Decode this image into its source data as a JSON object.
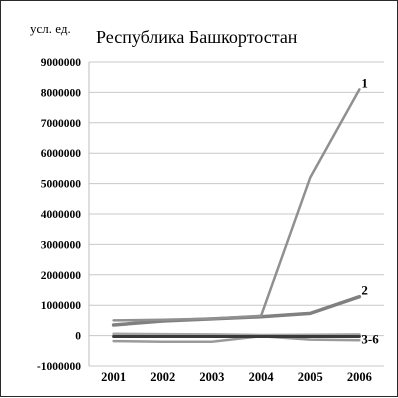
{
  "chart_data": {
    "type": "line",
    "title": "Республика Башкортостан",
    "ylabel": "усл. ед.",
    "xlabel": "",
    "x": [
      "2001",
      "2002",
      "2003",
      "2004",
      "2005",
      "2006"
    ],
    "ylim": [
      -1000000,
      9000000
    ],
    "yticks": [
      -1000000,
      0,
      1000000,
      2000000,
      3000000,
      4000000,
      5000000,
      6000000,
      7000000,
      8000000,
      9000000
    ],
    "ytick_labels": [
      "-1000000",
      "0",
      "1000000",
      "2000000",
      "3000000",
      "4000000",
      "5000000",
      "6000000",
      "7000000",
      "8000000",
      "9000000"
    ],
    "grid": "horizontal",
    "series": [
      {
        "name": "1",
        "values": [
          500000,
          520000,
          560000,
          650000,
          5200000,
          8100000
        ],
        "color": "#909090",
        "width": 2.5
      },
      {
        "name": "2",
        "values": [
          350000,
          480000,
          550000,
          620000,
          730000,
          1280000
        ],
        "color": "#808080",
        "width": 3.5
      },
      {
        "name": "3-6",
        "values": [
          -30000,
          -30000,
          -30000,
          -30000,
          -30000,
          -30000
        ],
        "color": "#3a3a3a",
        "width": 3
      },
      {
        "name": "",
        "values": [
          60000,
          50000,
          40000,
          20000,
          30000,
          40000
        ],
        "color": "#a6a6a6",
        "width": 2.5
      },
      {
        "name": "",
        "values": [
          -180000,
          -200000,
          -200000,
          -20000,
          -130000,
          -150000
        ],
        "color": "#9a9a9a",
        "width": 2.5
      },
      {
        "name": "",
        "values": [
          30000,
          20000,
          10000,
          0,
          10000,
          20000
        ],
        "color": "#606060",
        "width": 2
      }
    ],
    "series_labels": [
      {
        "text": "1",
        "series": 0
      },
      {
        "text": "2",
        "series": 1
      },
      {
        "text": "3-6",
        "series": 2
      }
    ]
  }
}
